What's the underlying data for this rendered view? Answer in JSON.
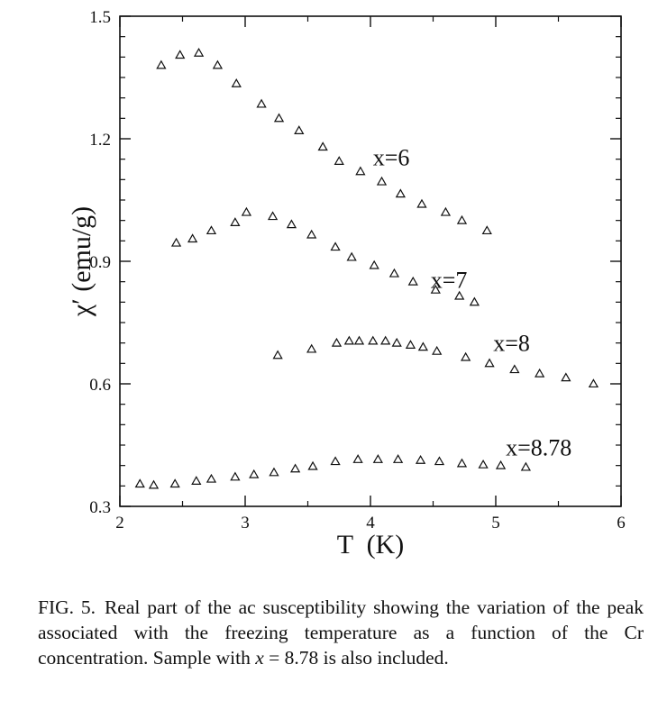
{
  "chart_data": {
    "type": "scatter",
    "title": "",
    "xlabel": "T  (K)",
    "ylabel": "χ′ (emu/g)",
    "xlim": [
      2,
      6
    ],
    "ylim": [
      0.3,
      1.5
    ],
    "xticks": [
      2,
      3,
      4,
      5,
      6
    ],
    "xtick_labels": [
      "2",
      "3",
      "4",
      "5",
      "6"
    ],
    "yticks": [
      0.3,
      0.6,
      0.9,
      1.2,
      1.5
    ],
    "ytick_labels": [
      "0.3",
      "0.6",
      "0.9",
      "1.2",
      "1.5"
    ],
    "grid": false,
    "legend": "none",
    "marker": "open-triangle",
    "series": [
      {
        "label": "x=6",
        "label_at": [
          4.02,
          1.135
        ],
        "x": [
          2.33,
          2.48,
          2.63,
          2.78,
          2.93,
          3.13,
          3.27,
          3.43,
          3.62,
          3.75,
          3.92,
          4.09,
          4.24,
          4.41,
          4.6,
          4.73,
          4.93
        ],
        "y": [
          1.38,
          1.405,
          1.41,
          1.38,
          1.335,
          1.285,
          1.25,
          1.22,
          1.18,
          1.145,
          1.12,
          1.095,
          1.065,
          1.04,
          1.02,
          1.0,
          0.975
        ]
      },
      {
        "label": "x=7",
        "label_at": [
          4.48,
          0.835
        ],
        "x": [
          2.45,
          2.58,
          2.73,
          2.92,
          3.01,
          3.22,
          3.37,
          3.53,
          3.72,
          3.85,
          4.03,
          4.19,
          4.34,
          4.52,
          4.71,
          4.83
        ],
        "y": [
          0.945,
          0.955,
          0.975,
          0.995,
          1.02,
          1.01,
          0.99,
          0.965,
          0.935,
          0.91,
          0.89,
          0.87,
          0.85,
          0.83,
          0.815,
          0.8
        ]
      },
      {
        "label": "x=8",
        "label_at": [
          4.98,
          0.68
        ],
        "x": [
          3.26,
          3.53,
          3.73,
          3.83,
          3.91,
          4.02,
          4.12,
          4.21,
          4.32,
          4.42,
          4.53,
          4.76,
          4.95,
          5.15,
          5.35,
          5.56,
          5.78
        ],
        "y": [
          0.67,
          0.685,
          0.7,
          0.705,
          0.705,
          0.705,
          0.705,
          0.7,
          0.695,
          0.69,
          0.68,
          0.665,
          0.65,
          0.635,
          0.625,
          0.615,
          0.6
        ]
      },
      {
        "label": "x=8.78",
        "label_at": [
          5.08,
          0.425
        ],
        "x": [
          2.16,
          2.27,
          2.44,
          2.61,
          2.73,
          2.92,
          3.07,
          3.23,
          3.4,
          3.54,
          3.72,
          3.9,
          4.06,
          4.22,
          4.4,
          4.55,
          4.73,
          4.9,
          5.04,
          5.24
        ],
        "y": [
          0.355,
          0.352,
          0.355,
          0.362,
          0.367,
          0.372,
          0.378,
          0.383,
          0.392,
          0.398,
          0.41,
          0.415,
          0.415,
          0.415,
          0.413,
          0.41,
          0.405,
          0.402,
          0.4,
          0.396
        ]
      }
    ]
  },
  "caption": {
    "label": "FIG. 5.",
    "text_before": "Real part of the ac susceptibility showing the variation of the peak associated with the freezing temperature as a function of the Cr concentration. Sample with ",
    "variable": "x",
    "text_mid": " = ",
    "value": "8.78",
    "text_after": " is also included."
  },
  "colors": {
    "ink": "#111111",
    "background": "#ffffff"
  }
}
